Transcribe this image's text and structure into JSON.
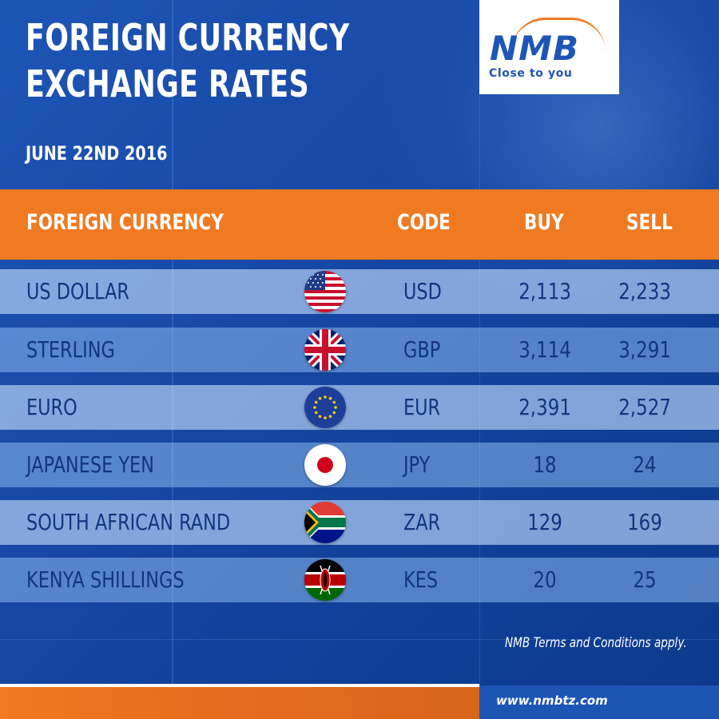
{
  "header": {
    "title_line1": "FOREIGN CURRENCY",
    "title_line2": "EXCHANGE RATES",
    "date": "JUNE 22ND 2016"
  },
  "logo": {
    "name": "NMB",
    "tagline": "Close to you"
  },
  "table": {
    "columns": {
      "currency": "FOREIGN CURRENCY",
      "code": "CODE",
      "buy": "BUY",
      "sell": "SELL"
    },
    "rows": [
      {
        "currency": "US DOLLAR",
        "flag": "usa-flag-icon",
        "code": "USD",
        "buy": "2,113",
        "sell": "2,233"
      },
      {
        "currency": "STERLING",
        "flag": "uk-flag-icon",
        "code": "GBP",
        "buy": "3,114",
        "sell": "3,291"
      },
      {
        "currency": "EURO",
        "flag": "eu-flag-icon",
        "code": "EUR",
        "buy": "2,391",
        "sell": "2,527"
      },
      {
        "currency": "JAPANESE YEN",
        "flag": "japan-flag-icon",
        "code": "JPY",
        "buy": "18",
        "sell": "24"
      },
      {
        "currency": "SOUTH AFRICAN RAND",
        "flag": "south-africa-flag-icon",
        "code": "ZAR",
        "buy": "129",
        "sell": "169"
      },
      {
        "currency": "KENYA SHILLINGS",
        "flag": "kenya-flag-icon",
        "code": "KES",
        "buy": "20",
        "sell": "25"
      }
    ]
  },
  "footer": {
    "terms": "NMB Terms and Conditions apply.",
    "website": "www.nmbtz.com"
  },
  "colors": {
    "background": "#1a4fae",
    "accent_orange": "#f07a22",
    "text_dark_blue": "#12357e",
    "logo_blue": "#1e56b5"
  }
}
